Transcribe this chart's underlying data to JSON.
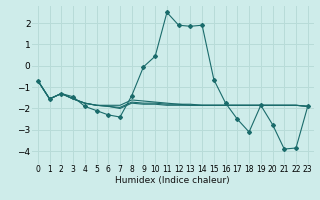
{
  "xlabel": "Humidex (Indice chaleur)",
  "background_color": "#ceecea",
  "grid_color": "#b8dbd8",
  "line_color": "#1a6b6b",
  "xlim": [
    -0.5,
    23.5
  ],
  "ylim": [
    -4.6,
    2.8
  ],
  "yticks": [
    -4,
    -3,
    -2,
    -1,
    0,
    1,
    2
  ],
  "xticks": [
    0,
    1,
    2,
    3,
    4,
    5,
    6,
    7,
    8,
    9,
    10,
    11,
    12,
    13,
    14,
    15,
    16,
    17,
    18,
    19,
    20,
    21,
    22,
    23
  ],
  "x": [
    0,
    1,
    2,
    3,
    4,
    5,
    6,
    7,
    8,
    9,
    10,
    11,
    12,
    13,
    14,
    15,
    16,
    17,
    18,
    19,
    20,
    21,
    22,
    23
  ],
  "series1": [
    -0.7,
    -1.55,
    -1.3,
    -1.45,
    -1.9,
    -2.1,
    -2.3,
    -2.4,
    -1.4,
    -0.05,
    0.45,
    2.5,
    1.9,
    1.85,
    1.9,
    -0.65,
    -1.75,
    -2.5,
    -3.1,
    -1.85,
    -2.75,
    -3.9,
    -3.85,
    -1.9
  ],
  "series2": [
    -0.7,
    -1.55,
    -1.3,
    -1.55,
    -1.75,
    -1.85,
    -1.85,
    -1.85,
    -1.6,
    -1.65,
    -1.7,
    -1.75,
    -1.8,
    -1.8,
    -1.85,
    -1.85,
    -1.85,
    -1.85,
    -1.85,
    -1.85,
    -1.85,
    -1.85,
    -1.85,
    -1.9
  ],
  "series3": [
    -0.7,
    -1.55,
    -1.3,
    -1.55,
    -1.75,
    -1.85,
    -1.9,
    -1.95,
    -1.7,
    -1.75,
    -1.75,
    -1.8,
    -1.8,
    -1.85,
    -1.85,
    -1.85,
    -1.85,
    -1.85,
    -1.85,
    -1.85,
    -1.85,
    -1.85,
    -1.85,
    -1.9
  ],
  "series4": [
    -0.7,
    -1.55,
    -1.3,
    -1.55,
    -1.75,
    -1.85,
    -1.9,
    -2.0,
    -1.75,
    -1.8,
    -1.8,
    -1.85,
    -1.85,
    -1.85,
    -1.85,
    -1.85,
    -1.85,
    -1.85,
    -1.85,
    -1.85,
    -1.85,
    -1.85,
    -1.85,
    -1.9
  ]
}
